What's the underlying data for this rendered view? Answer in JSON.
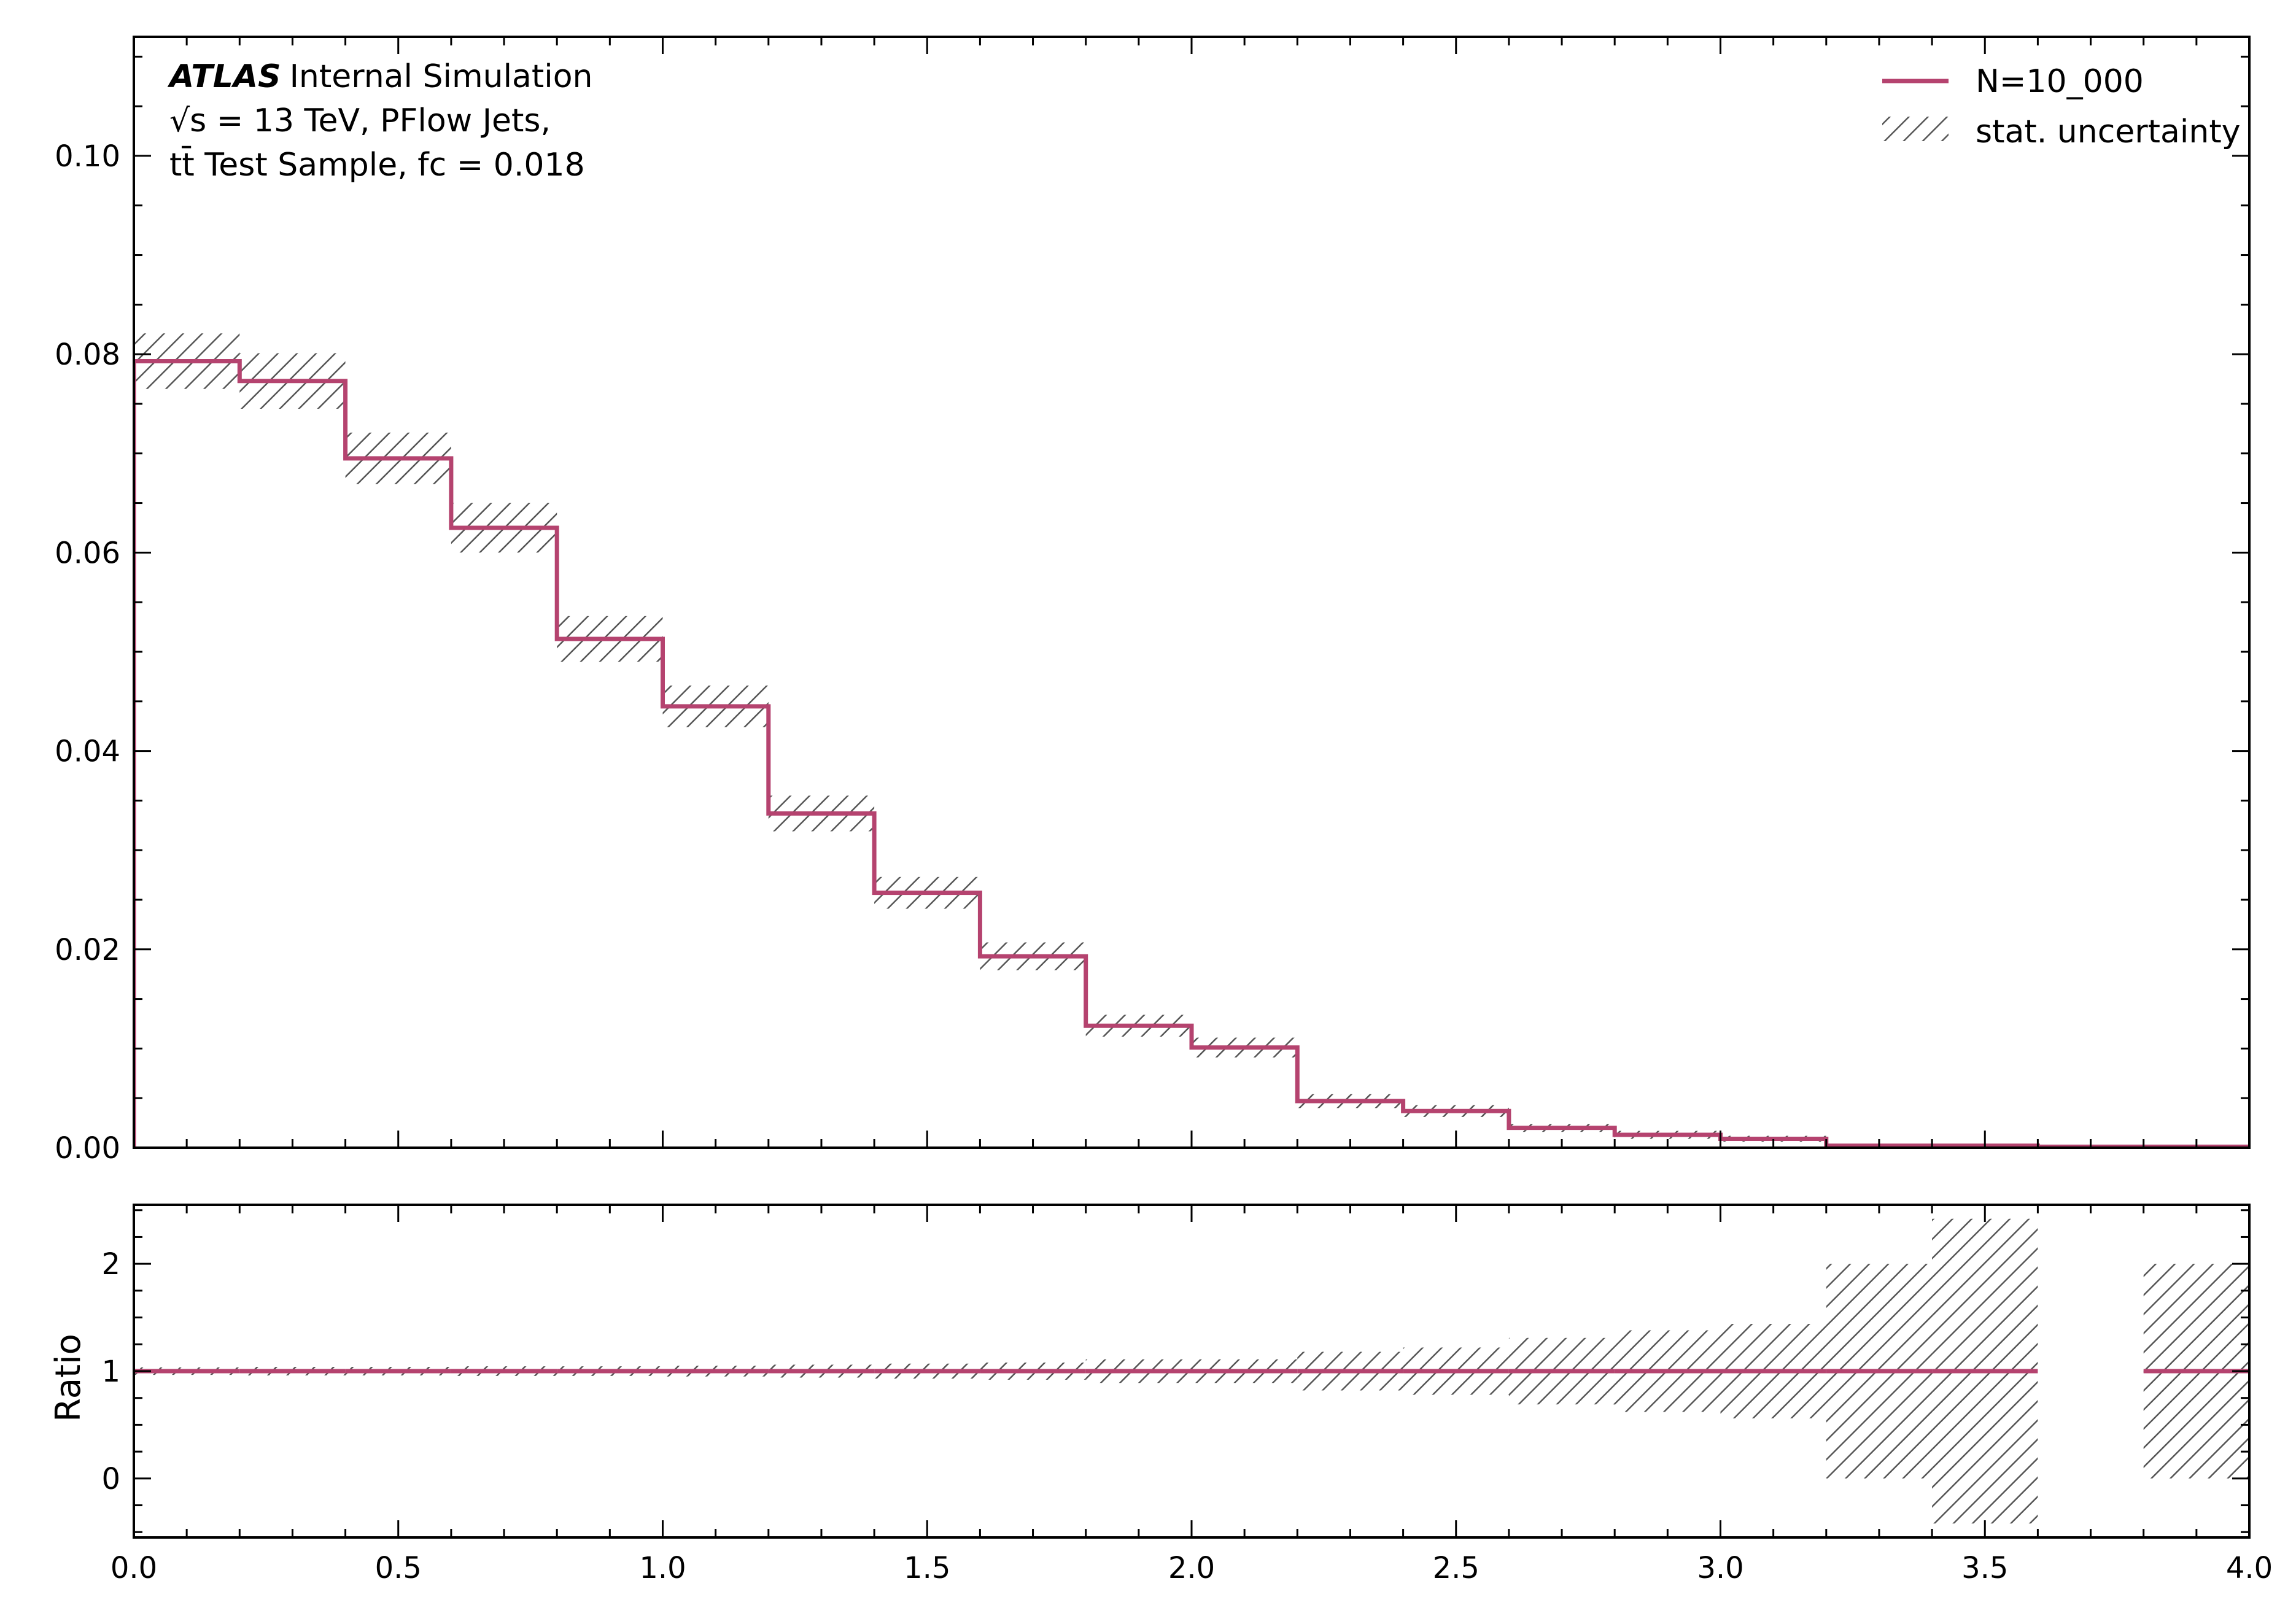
{
  "chart_data": [
    {
      "type": "step",
      "bin_edges": [
        0.0,
        0.2,
        0.4,
        0.6,
        0.8,
        1.0,
        1.2,
        1.4,
        1.6,
        1.8,
        2.0,
        2.2,
        2.4,
        2.6,
        2.8,
        3.0,
        3.2,
        3.4,
        3.6,
        3.8,
        4.0
      ],
      "series": [
        {
          "name": "N=10_000",
          "values": [
            0.0793,
            0.0773,
            0.0695,
            0.0625,
            0.0513,
            0.0445,
            0.0337,
            0.0257,
            0.0193,
            0.0123,
            0.0101,
            0.0047,
            0.0037,
            0.002,
            0.0013,
            0.0009,
            0.0002,
            0.0002,
            0.0001,
            0.0001
          ],
          "color": "#b5436f"
        },
        {
          "name": "stat. uncertainty",
          "uncertainty": [
            0.0028,
            0.0028,
            0.0026,
            0.0025,
            0.0023,
            0.0021,
            0.0018,
            0.0016,
            0.0014,
            0.0011,
            0.001,
            0.0007,
            0.0006,
            0.0004,
            0.0004,
            0.0003,
            0.0002,
            0.0002,
            0.0001,
            0.0001
          ],
          "color": "#555555",
          "hatch": "diagonal"
        }
      ],
      "xlim": [
        0.0,
        4.0
      ],
      "ylim": [
        0.0,
        0.112
      ],
      "x_ticks": [
        "0.0",
        "0.5",
        "1.0",
        "1.5",
        "2.0",
        "2.5",
        "3.0",
        "3.5",
        "4.0"
      ],
      "y_ticks": [
        "0.00",
        "0.02",
        "0.04",
        "0.06",
        "0.08",
        "0.10"
      ],
      "legend_position": "top-right",
      "annotation": {
        "atlas": "ATLAS",
        "label": "Internal Simulation",
        "line2": "√s = 13 TeV, PFlow Jets,",
        "line3": "tt̄ Test Sample, fc = 0.018"
      }
    },
    {
      "type": "step",
      "ylabel": "Ratio",
      "bin_edges": [
        0.0,
        0.2,
        0.4,
        0.6,
        0.8,
        1.0,
        1.2,
        1.4,
        1.6,
        1.8,
        2.0,
        2.2,
        2.4,
        2.6,
        2.8,
        3.0,
        3.2,
        3.4,
        3.6,
        3.8,
        4.0
      ],
      "ratio": [
        1,
        1,
        1,
        1,
        1,
        1,
        1,
        1,
        1,
        1,
        1,
        1,
        1,
        1,
        1,
        1,
        1,
        1,
        null,
        1
      ],
      "band_low": [
        0.965,
        0.96,
        0.96,
        0.955,
        0.955,
        0.95,
        0.94,
        0.93,
        0.92,
        0.89,
        0.89,
        0.82,
        0.78,
        0.69,
        0.62,
        0.56,
        0.0,
        -0.42,
        null,
        0.0
      ],
      "band_high": [
        1.035,
        1.04,
        1.04,
        1.045,
        1.045,
        1.05,
        1.06,
        1.07,
        1.08,
        1.11,
        1.11,
        1.18,
        1.22,
        1.31,
        1.38,
        1.44,
        2.0,
        2.42,
        null,
        2.0
      ],
      "xlim": [
        0.0,
        4.0
      ],
      "ylim": [
        -0.55,
        2.55
      ],
      "y_ticks": [
        "0",
        "1",
        "2"
      ],
      "x_ticks": [
        "0.0",
        "0.5",
        "1.0",
        "1.5",
        "2.0",
        "2.5",
        "3.0",
        "3.5",
        "4.0"
      ]
    }
  ]
}
